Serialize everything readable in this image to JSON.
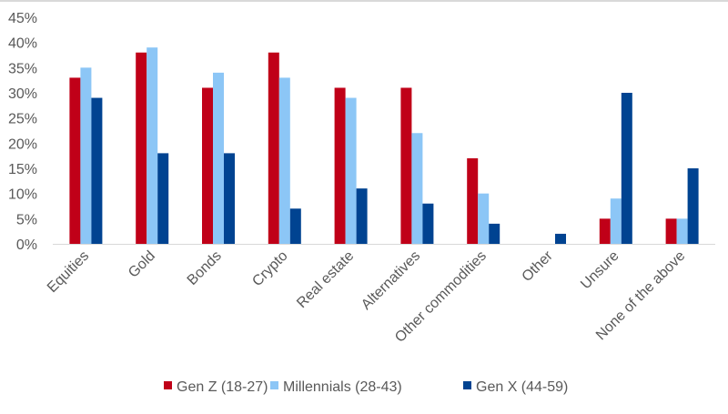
{
  "chart_data": {
    "type": "bar",
    "title": "",
    "xlabel": "",
    "ylabel": "",
    "ylim": [
      0,
      45
    ],
    "yticks": [
      "0%",
      "5%",
      "10%",
      "15%",
      "20%",
      "25%",
      "30%",
      "35%",
      "40%",
      "45%"
    ],
    "grid": false,
    "legend_position": "bottom",
    "categories": [
      "Equities",
      "Gold",
      "Bonds",
      "Crypto",
      "Real estate",
      "Alternatives",
      "Other commodities",
      "Other",
      "Unsure",
      "None of the above"
    ],
    "series": [
      {
        "name": "Gen Z (18-27)",
        "color": "#C00018",
        "values": [
          33,
          38,
          31,
          38,
          31,
          31,
          17,
          0,
          5,
          5
        ]
      },
      {
        "name": "Millennials (28-43)",
        "color": "#8CC6F6",
        "values": [
          35,
          39,
          34,
          33,
          29,
          22,
          10,
          0,
          9,
          5
        ]
      },
      {
        "name": "Gen X (44-59)",
        "color": "#004391",
        "values": [
          29,
          18,
          18,
          7,
          11,
          8,
          4,
          2,
          30,
          15
        ]
      }
    ]
  }
}
